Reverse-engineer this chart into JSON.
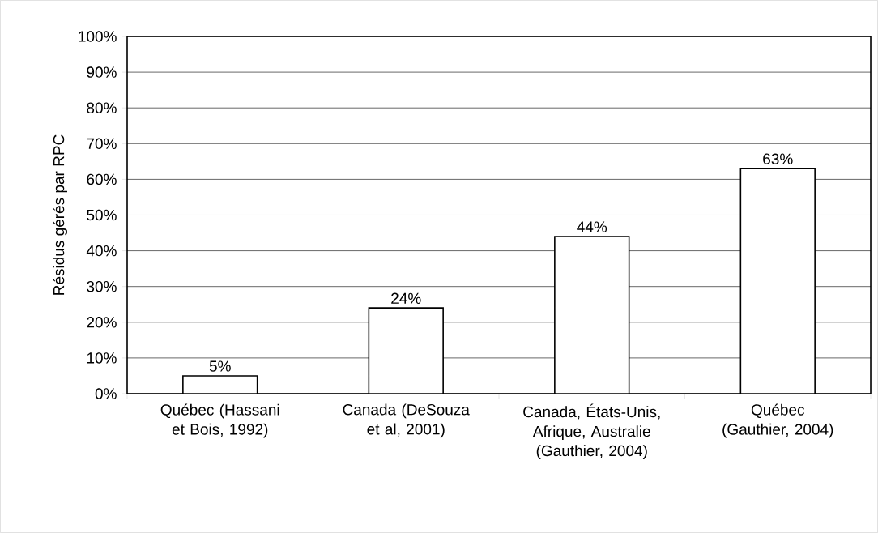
{
  "chart_data": {
    "type": "bar",
    "ylabel": "Résidus gérés par RPC",
    "categories": [
      "Québec (Hassani et Bois, 1992)",
      "Canada (DeSouza et al, 2001)",
      "Canada, États-Unis, Afrique, Australie (Gauthier, 2004)",
      "Québec (Gauthier, 2004)"
    ],
    "values": [
      5,
      24,
      44,
      63
    ],
    "value_labels": [
      "5%",
      "24%",
      "44%",
      "63%"
    ],
    "color": "#ffffff",
    "ylim": [
      0,
      100
    ],
    "yticks": [
      {
        "value": 0,
        "label": "0%"
      },
      {
        "value": 10,
        "label": "10%"
      },
      {
        "value": 20,
        "label": "20%"
      },
      {
        "value": 30,
        "label": "30%"
      },
      {
        "value": 40,
        "label": "40%"
      },
      {
        "value": 50,
        "label": "50%"
      },
      {
        "value": 60,
        "label": "60%"
      },
      {
        "value": 70,
        "label": "70%"
      },
      {
        "value": 80,
        "label": "80%"
      },
      {
        "value": 90,
        "label": "90%"
      },
      {
        "value": 100,
        "label": "100%"
      }
    ],
    "grid": "y"
  }
}
